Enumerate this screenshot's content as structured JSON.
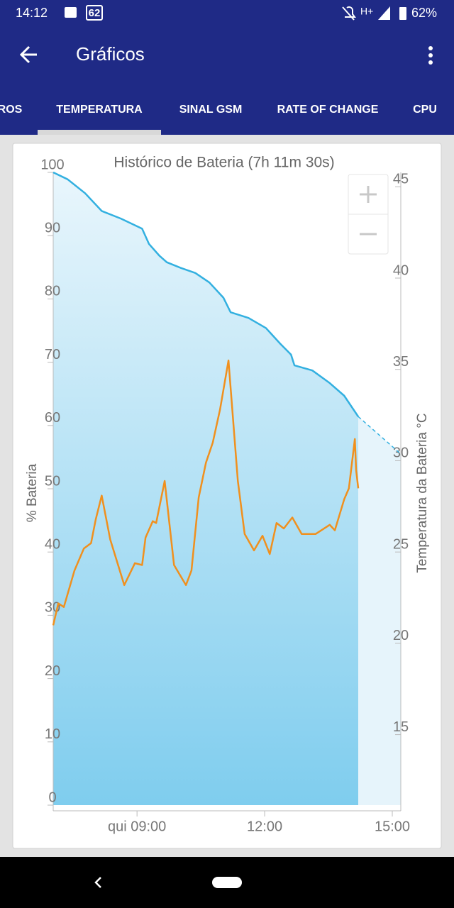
{
  "status_bar": {
    "time": "14:12",
    "badge": "62",
    "network": "H+",
    "battery": "62%"
  },
  "app_bar": {
    "title": "Gráficos"
  },
  "tabs": [
    "ROS",
    "TEMPERATURA",
    "SINAL GSM",
    "RATE OF CHANGE",
    "CPU"
  ],
  "selected_tab": 1,
  "chart_data": {
    "type": "line",
    "title": "Histórico de Bateria (7h 11m 30s)",
    "ylabel": "% Bateria",
    "y2label": "Temperatura da Bateria °C",
    "xlim": [
      7.03,
      15.2
    ],
    "xticks": [
      {
        "value": 9,
        "label": "qui 09:00"
      },
      {
        "value": 12,
        "label": "12:00"
      },
      {
        "value": 15,
        "label": "15:00"
      }
    ],
    "ylim": [
      0,
      100
    ],
    "yticks": [
      0,
      10,
      20,
      30,
      40,
      50,
      60,
      70,
      80,
      90,
      100
    ],
    "y2lim": [
      10.75,
      45.4
    ],
    "y2ticks": [
      15,
      20,
      25,
      30,
      35,
      40,
      45
    ],
    "fill": "#7fcdee",
    "series": [
      {
        "color": "#33b0e0",
        "x": [
          7.03,
          7.37,
          7.78,
          8.17,
          8.62,
          9.12,
          9.28,
          9.53,
          9.7,
          10.03,
          10.37,
          10.7,
          11.03,
          11.2,
          11.62,
          12.03,
          12.37,
          12.62,
          12.7,
          13.12,
          13.53,
          13.87,
          14.2
        ],
        "values": [
          100,
          98.9,
          96.7,
          93.9,
          92.7,
          91.1,
          88.7,
          86.8,
          85.8,
          84.9,
          84.1,
          82.6,
          80.2,
          77.9,
          77.0,
          75.4,
          72.9,
          71.2,
          69.5,
          68.7,
          66.7,
          64.7,
          61.4
        ]
      },
      {
        "color": "#33b0e0",
        "dashed": true,
        "x": [
          14.2,
          15.2
        ],
        "values": [
          61.4,
          55.5
        ]
      },
      {
        "color": "#f0901e",
        "axis": "y2",
        "x": [
          7.03,
          7.15,
          7.28,
          7.53,
          7.75,
          7.92,
          8.03,
          8.17,
          8.37,
          8.7,
          8.95,
          9.12,
          9.2,
          9.37,
          9.45,
          9.65,
          9.87,
          10.15,
          10.28,
          10.45,
          10.62,
          10.78,
          10.95,
          11.15,
          11.37,
          11.53,
          11.75,
          11.95,
          12.12,
          12.28,
          12.45,
          12.65,
          12.87,
          13.2,
          13.53,
          13.65,
          13.87,
          13.98,
          14.12,
          14.15,
          14.2
        ],
        "values": [
          20.6,
          21.8,
          21.6,
          23.6,
          24.8,
          25.1,
          26.4,
          27.7,
          25.3,
          22.8,
          24.0,
          23.9,
          25.4,
          26.3,
          26.2,
          28.5,
          23.9,
          22.8,
          23.6,
          27.6,
          29.5,
          30.6,
          32.4,
          35.1,
          28.5,
          25.6,
          24.7,
          25.5,
          24.5,
          26.2,
          25.9,
          26.5,
          25.6,
          25.6,
          26.1,
          25.8,
          27.5,
          28.1,
          30.8,
          29.1,
          28.1
        ]
      }
    ]
  }
}
